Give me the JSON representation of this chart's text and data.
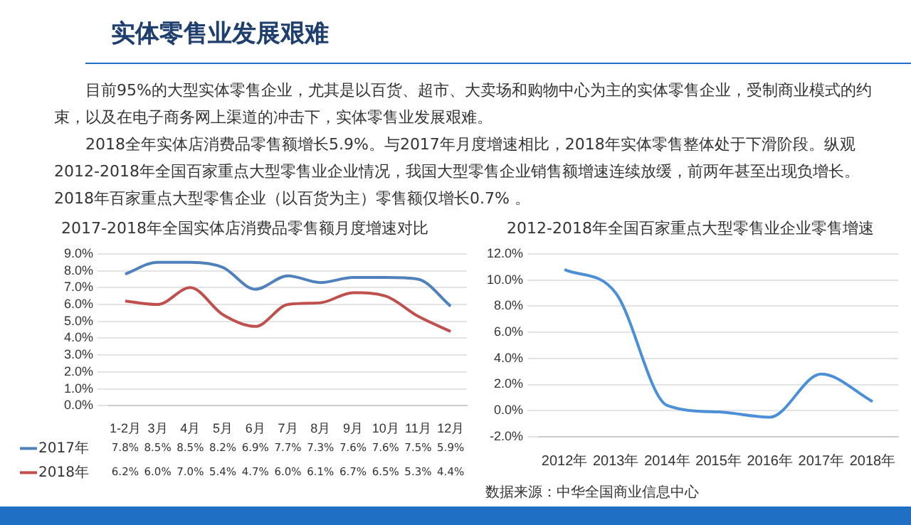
{
  "chart_data": [
    {
      "type": "other",
      "title": "实体零售业发展艰难",
      "annotations": [
        "目前95%的大型实体零售企业，尤其是以百货、超市、大卖场和购物中心为主的实体零售企业，受制商业模式的约束，以及在电子商务网上渠道的冲击下，实体零售业发展艰难。",
        "2018全年实体店消费品零售额增长5.9%。与2017年月度增速相比，2018年实体零售整体处于下滑阶段。纵观2012-2018年全国百家重点大型零售业企业情况，我国大型零售企业销售额增速连续放缓，前两年甚至出现负增长。2018年百家重点大型零售企业（以百货为主）零售额仅增长0.7% 。"
      ]
    },
    {
      "type": "line",
      "title": "2017-2018年全国实体店消费品零售额月度增速对比",
      "categories": [
        "1-2月",
        "3月",
        "4月",
        "5月",
        "6月",
        "7月",
        "8月",
        "9月",
        "10月",
        "11月",
        "12月"
      ],
      "series": [
        {
          "name": "2017年",
          "color": "#4f81bd",
          "values": [
            7.8,
            8.5,
            8.5,
            8.2,
            6.9,
            7.7,
            7.3,
            7.6,
            7.6,
            7.5,
            5.9
          ],
          "value_labels": [
            "7.8%",
            "8.5%",
            "8.5%",
            "8.2%",
            "6.9%",
            "7.7%",
            "7.3%",
            "7.6%",
            "7.6%",
            "7.5%",
            "5.9%"
          ]
        },
        {
          "name": "2018年",
          "color": "#c0504d",
          "values": [
            6.2,
            6.0,
            7.0,
            5.4,
            4.7,
            6.0,
            6.1,
            6.7,
            6.5,
            5.3,
            4.4
          ],
          "value_labels": [
            "6.2%",
            "6.0%",
            "7.0%",
            "5.4%",
            "4.7%",
            "6.0%",
            "6.1%",
            "6.7%",
            "6.5%",
            "5.3%",
            "4.4%"
          ]
        }
      ],
      "ylim": [
        0,
        9
      ],
      "yticks": [
        {
          "value": 0,
          "label": "0.0%"
        },
        {
          "value": 1,
          "label": "1.0%"
        },
        {
          "value": 2,
          "label": "2.0%"
        },
        {
          "value": 3,
          "label": "3.0%"
        },
        {
          "value": 4,
          "label": "4.0%"
        },
        {
          "value": 5,
          "label": "5.0%"
        },
        {
          "value": 6,
          "label": "6.0%"
        },
        {
          "value": 7,
          "label": "7.0%"
        },
        {
          "value": 8,
          "label": "8.0%"
        },
        {
          "value": 9,
          "label": "9.0%"
        }
      ],
      "grid": "y",
      "marker": "none",
      "legend": "bottom left"
    },
    {
      "type": "line",
      "title": "2012-2018年全国百家重点大型零售业企业零售增速",
      "categories": [
        "2012年",
        "2013年",
        "2014年",
        "2015年",
        "2016年",
        "2017年",
        "2018年"
      ],
      "values": [
        10.8,
        9.0,
        0.4,
        -0.1,
        -0.5,
        2.8,
        0.7
      ],
      "color": "#4a8fd8",
      "ylim": [
        -2,
        12
      ],
      "yticks": [
        {
          "value": -2,
          "label": "-2.0%"
        },
        {
          "value": 0,
          "label": "0.0%"
        },
        {
          "value": 2,
          "label": "2.0%"
        },
        {
          "value": 4,
          "label": "4.0%"
        },
        {
          "value": 6,
          "label": "6.0%"
        },
        {
          "value": 8,
          "label": "8.0%"
        },
        {
          "value": 10,
          "label": "10.0%"
        },
        {
          "value": 12,
          "label": "12.0%"
        }
      ],
      "grid": "y",
      "marker": "none",
      "annotations": [
        "数据来源：中华全国商业信息中心"
      ]
    }
  ]
}
